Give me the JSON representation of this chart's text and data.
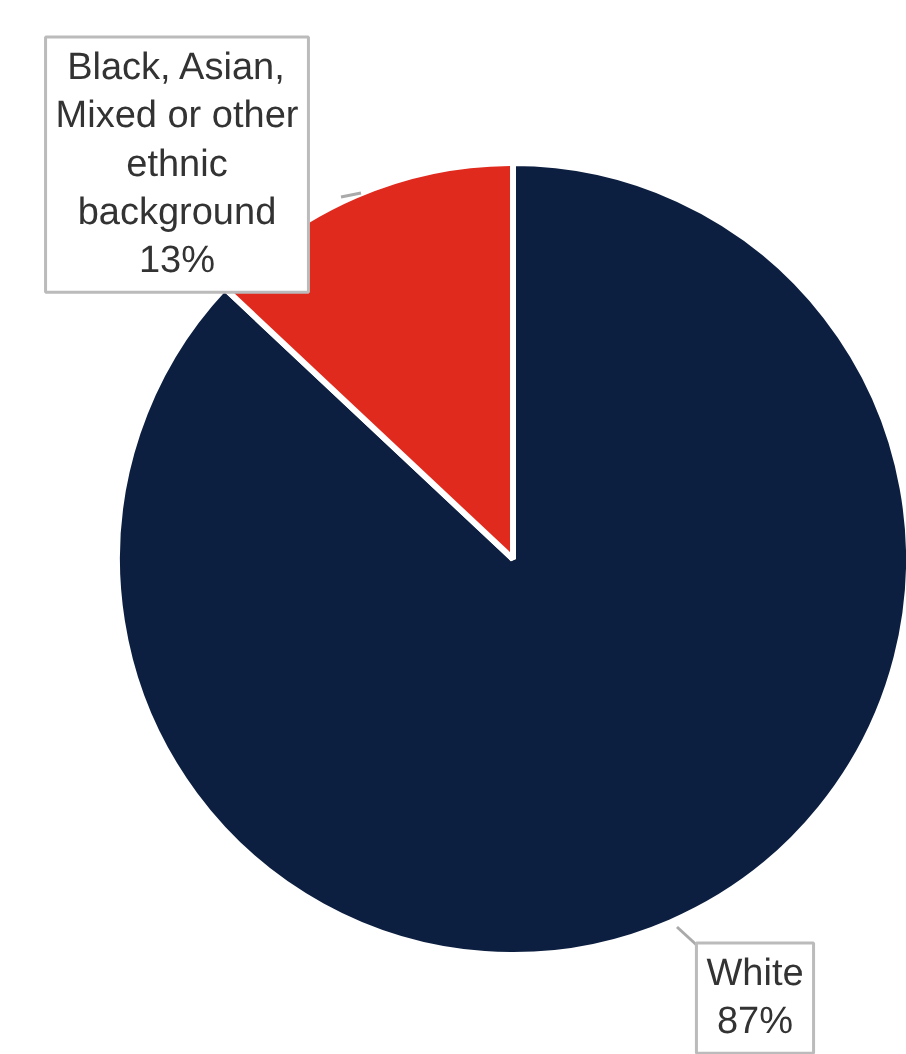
{
  "chart_data": {
    "type": "pie",
    "categories": [
      "White",
      "Black, Asian, Mixed or other ethnic background"
    ],
    "values": [
      87,
      13
    ],
    "colors": [
      "#0d1f40",
      "#e02a1e"
    ],
    "value_labels": [
      "87%",
      "13%"
    ]
  }
}
